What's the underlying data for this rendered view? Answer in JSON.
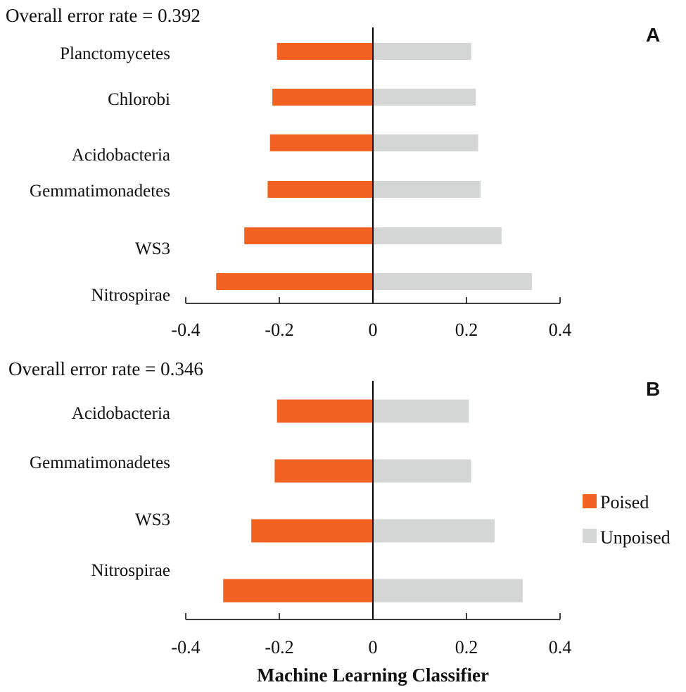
{
  "colors": {
    "poised": "#F26322",
    "unpoised": "#D3D6D4",
    "axis": "#000000",
    "text": "#111111"
  },
  "legend": {
    "poised_label": "Poised",
    "unpoised_label": "Unpoised"
  },
  "xlabel": "Machine Learning Classifier",
  "chart_data": [
    {
      "type": "bar",
      "orientation": "horizontal",
      "panel_label": "A",
      "title": "Overall error rate = 0.392",
      "categories": [
        "Planctomycetes",
        "Chlorobi",
        "Acidobacteria",
        "Gemmatimonadetes",
        "WS3",
        "Nitrospirae"
      ],
      "series": [
        {
          "name": "Poised",
          "values": [
            -0.205,
            -0.215,
            -0.22,
            -0.225,
            -0.275,
            -0.335
          ]
        },
        {
          "name": "Unpoised",
          "values": [
            0.21,
            0.22,
            0.225,
            0.23,
            0.275,
            0.34
          ]
        }
      ],
      "xlim": [
        -0.4,
        0.4
      ],
      "xticks": [
        -0.4,
        -0.2,
        0,
        0.2,
        0.4
      ],
      "xtick_labels": [
        "-0.4",
        "-0.2",
        "0",
        "0.2",
        "0.4"
      ],
      "xlabel": ""
    },
    {
      "type": "bar",
      "orientation": "horizontal",
      "panel_label": "B",
      "title": "Overall error rate = 0.346",
      "categories": [
        "Acidobacteria",
        "Gemmatimonadetes",
        "WS3",
        "Nitrospirae"
      ],
      "series": [
        {
          "name": "Poised",
          "values": [
            -0.205,
            -0.21,
            -0.26,
            -0.32
          ]
        },
        {
          "name": "Unpoised",
          "values": [
            0.205,
            0.21,
            0.26,
            0.32
          ]
        }
      ],
      "xlim": [
        -0.4,
        0.4
      ],
      "xticks": [
        -0.4,
        -0.2,
        0,
        0.2,
        0.4
      ],
      "xtick_labels": [
        "-0.4",
        "-0.2",
        "0",
        "0.2",
        "0.4"
      ],
      "xlabel": "Machine Learning Classifier"
    }
  ]
}
